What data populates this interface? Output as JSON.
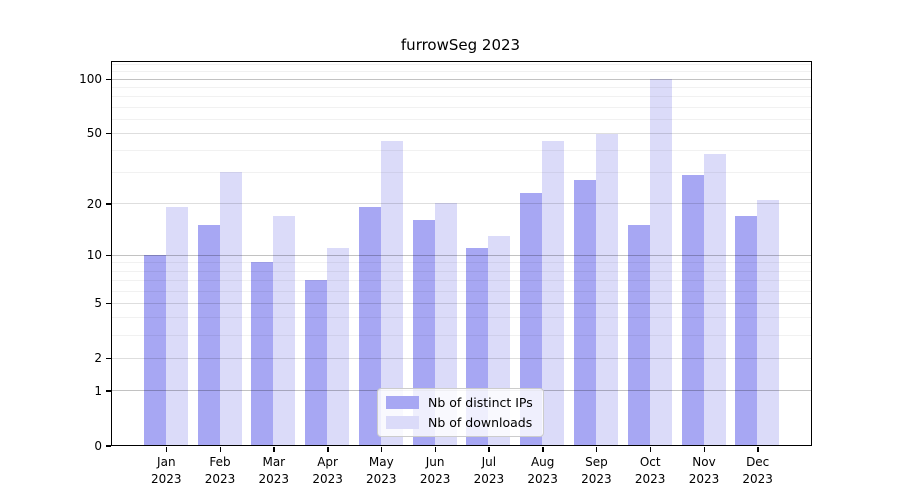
{
  "title": "furrowSeg 2023",
  "colors": {
    "distinct_ips": "#a7a7f3",
    "downloads": "#dbdbf9",
    "grid_decade": "rgba(0,0,0,0.24)",
    "grid_labeled": "rgba(0,0,0,0.13)",
    "grid_minor": "rgba(0,0,0,0.055)"
  },
  "legend": {
    "items": [
      {
        "label": "Nb of distinct IPs",
        "color_key": "distinct_ips"
      },
      {
        "label": "Nb of downloads",
        "color_key": "downloads"
      }
    ]
  },
  "axes": {
    "y_scale": "log1p",
    "y_max": 123.4,
    "y_tick_values": [
      100,
      50,
      20,
      10,
      5,
      2,
      1,
      0
    ],
    "y_decade_lines": [
      1,
      10,
      100
    ],
    "y_labeled_lines": [
      2,
      5,
      20,
      50
    ],
    "y_minor_lines": [
      3,
      4,
      6,
      7,
      8,
      9,
      30,
      40,
      60,
      70,
      80,
      90,
      110,
      120
    ],
    "x_year_line": "2023"
  },
  "chart_data": {
    "type": "bar",
    "title": "furrowSeg 2023",
    "categories": [
      "Jan 2023",
      "Feb 2023",
      "Mar 2023",
      "Apr 2023",
      "May 2023",
      "Jun 2023",
      "Jul 2023",
      "Aug 2023",
      "Sep 2023",
      "Oct 2023",
      "Nov 2023",
      "Dec 2023"
    ],
    "months": [
      "Jan",
      "Feb",
      "Mar",
      "Apr",
      "May",
      "Jun",
      "Jul",
      "Aug",
      "Sep",
      "Oct",
      "Nov",
      "Dec"
    ],
    "series": [
      {
        "name": "Nb of distinct IPs",
        "key": "distinct_ips",
        "values": [
          10,
          15,
          9,
          7,
          19,
          16,
          11,
          23,
          27,
          15,
          29,
          17
        ]
      },
      {
        "name": "Nb of downloads",
        "key": "downloads",
        "values": [
          19,
          30,
          17,
          11,
          45,
          20,
          13,
          45,
          49,
          100,
          38,
          21
        ]
      }
    ],
    "yscale": "log1p",
    "y_ticks": [
      0,
      1,
      2,
      5,
      10,
      20,
      50,
      100
    ],
    "ylim": [
      0,
      123
    ],
    "grid": true,
    "legend_position": "lower center"
  }
}
